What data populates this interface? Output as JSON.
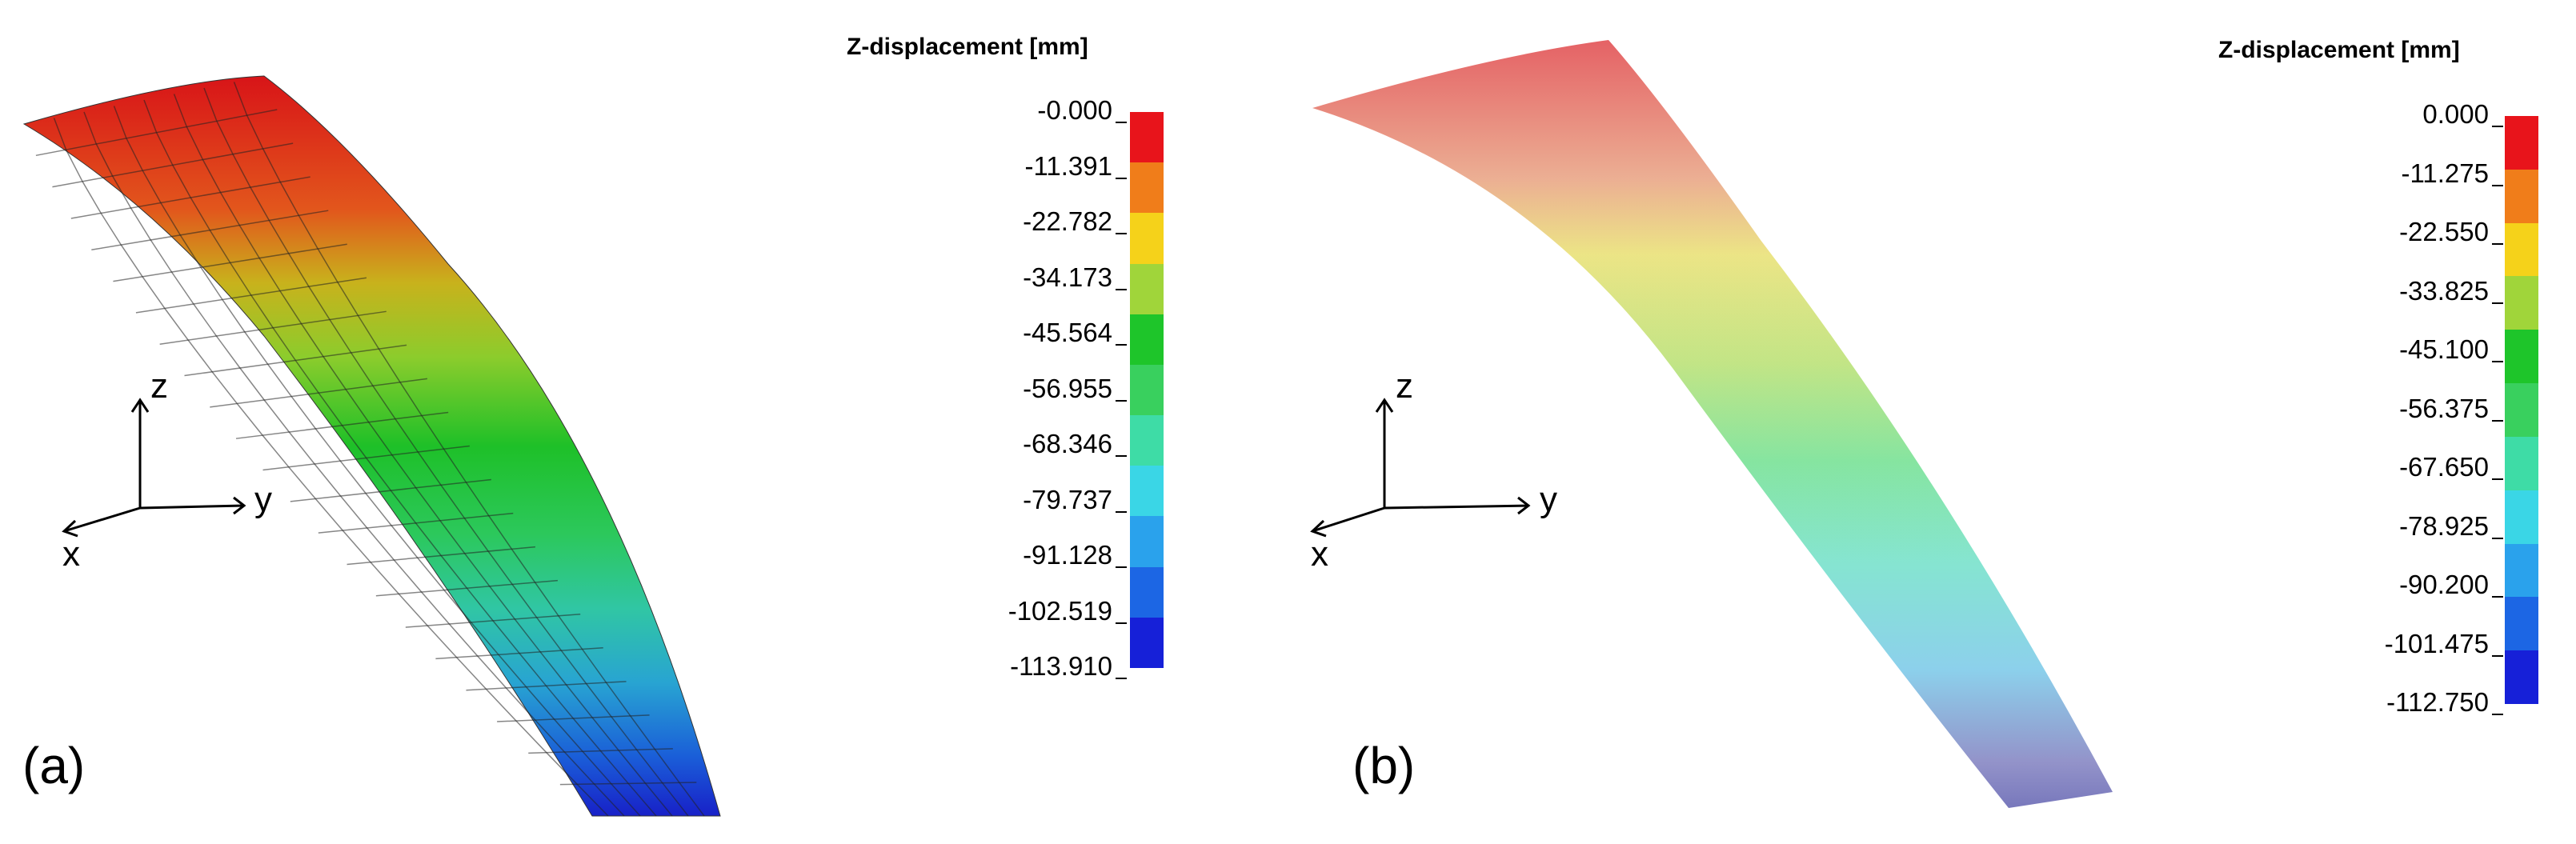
{
  "panels": [
    {
      "id": "a",
      "label": "(a)",
      "legend": {
        "title": "Z-displacement [mm]",
        "ticks": [
          "-0.000",
          "-11.391",
          "-22.782",
          "-34.173",
          "-45.564",
          "-56.955",
          "-68.346",
          "-79.737",
          "-91.128",
          "-102.519",
          "-113.910"
        ],
        "colors": [
          "#e8141b",
          "#f07d1a",
          "#f5d21a",
          "#a0d53a",
          "#1ec52a",
          "#39d05e",
          "#3edca6",
          "#3ad6e6",
          "#2aa2ec",
          "#1c66e4",
          "#1620d8"
        ]
      },
      "axes": {
        "z": "z",
        "y": "y",
        "x": "x"
      }
    },
    {
      "id": "b",
      "label": "(b)",
      "legend": {
        "title": "Z-displacement [mm]",
        "ticks": [
          "0.000",
          "-11.275",
          "-22.550",
          "-33.825",
          "-45.100",
          "-56.375",
          "-67.650",
          "-78.925",
          "-90.200",
          "-101.475",
          "-112.750"
        ],
        "colors": [
          "#e8141b",
          "#f07d1a",
          "#f5d21a",
          "#a0d53a",
          "#1ec52a",
          "#39d05e",
          "#3edca6",
          "#3ad6e6",
          "#2aa2ec",
          "#1c66e4",
          "#1620d8"
        ]
      },
      "axes": {
        "z": "z",
        "y": "y",
        "x": "x"
      }
    }
  ]
}
